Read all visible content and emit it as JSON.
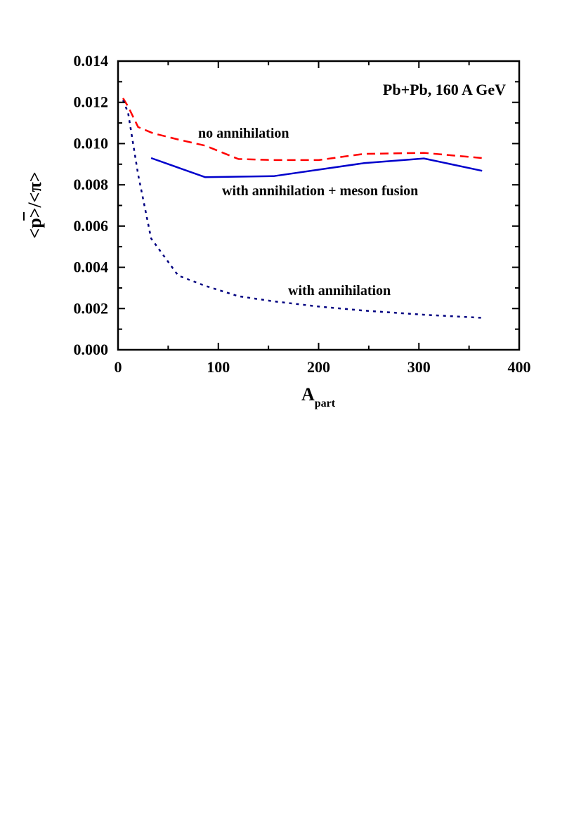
{
  "chart_data": {
    "type": "line",
    "title": "Pb+Pb,  160 A GeV",
    "xlabel": "A",
    "xlabel_sub": "part",
    "ylabel": "<p>/<π>",
    "xlim": [
      0,
      400
    ],
    "ylim": [
      0,
      0.014
    ],
    "grid": false,
    "x_ticks": [
      "0",
      "100",
      "200",
      "300",
      "400"
    ],
    "y_ticks": [
      "0.000",
      "0.002",
      "0.004",
      "0.006",
      "0.008",
      "0.010",
      "0.012",
      "0.014"
    ],
    "series": [
      {
        "name": "no annihilation",
        "color": "#ff0000",
        "style": "dashed",
        "x": [
          5,
          10,
          20,
          35,
          60,
          87,
          120,
          155,
          200,
          245,
          305,
          363
        ],
        "y": [
          0.0122,
          0.0118,
          0.0108,
          0.0105,
          0.0102,
          0.0099,
          0.00925,
          0.0092,
          0.0092,
          0.0095,
          0.00955,
          0.0093
        ]
      },
      {
        "name": "with annihilation + meson fusion",
        "color": "#0000cc",
        "style": "solid",
        "x": [
          33,
          87,
          155,
          245,
          305,
          363
        ],
        "y": [
          0.0093,
          0.00837,
          0.00842,
          0.00905,
          0.00928,
          0.00868
        ]
      },
      {
        "name": "with annihilation",
        "color": "#000080",
        "style": "dotted",
        "x": [
          5,
          10,
          20,
          33,
          60,
          87,
          120,
          155,
          200,
          245,
          305,
          363
        ],
        "y": [
          0.0121,
          0.0115,
          0.0085,
          0.0054,
          0.0036,
          0.0031,
          0.0026,
          0.00235,
          0.0021,
          0.0019,
          0.0017,
          0.00155
        ]
      }
    ]
  }
}
